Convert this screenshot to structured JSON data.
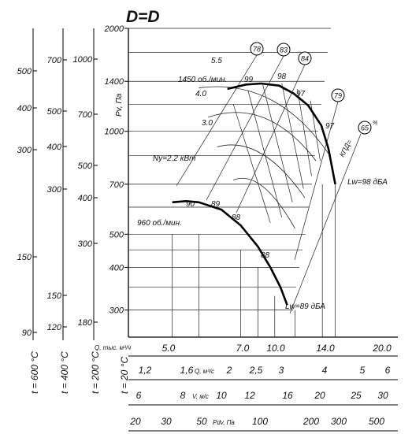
{
  "chart_data": {
    "type": "line",
    "title": "D=D",
    "ylabel": "Pv, Па",
    "y_log_ticks": [
      {
        "label": "2000",
        "value": 2000
      },
      {
        "label": "1400",
        "value": 1400
      },
      {
        "label": "1000",
        "value": 1000
      },
      {
        "label": "700",
        "value": 700
      },
      {
        "label": "500",
        "value": 500
      },
      {
        "label": "400",
        "value": 400
      },
      {
        "label": "300",
        "value": 300
      }
    ],
    "temp_axes": [
      {
        "label": "t = 600 °C",
        "ticks": [
          "500",
          "400",
          "300",
          "150",
          "90"
        ]
      },
      {
        "label": "t = 400 °C",
        "ticks": [
          "700",
          "500",
          "400",
          "300",
          "150",
          "120"
        ]
      },
      {
        "label": "t = 200 °C",
        "ticks": [
          "1000",
          "700",
          "500",
          "400",
          "300",
          "180"
        ]
      },
      {
        "label": "t = 20 °C",
        "ticks": []
      }
    ],
    "bottom_axes": [
      {
        "name": "Q, тыс. м³/ч",
        "ticks": [
          "5.0",
          "7.0",
          "10.0",
          "14.0",
          "20.0"
        ]
      },
      {
        "name": "Q, м³/с",
        "ticks": [
          "1,2",
          "1,6",
          "2",
          "2,5",
          "3",
          "4",
          "5",
          "6"
        ]
      },
      {
        "name": "V, м/с",
        "ticks": [
          "6",
          "8",
          "10",
          "12",
          "16",
          "20",
          "25",
          "30"
        ]
      },
      {
        "name": "Pdv, Па",
        "ticks": [
          "20",
          "30",
          "50",
          "100",
          "200",
          "300",
          "500"
        ]
      }
    ],
    "series": [
      {
        "name": "1450 об./мин.",
        "x": [
          7.3,
          8.3,
          9.2,
          10.4,
          11.5,
          12.7,
          13.9,
          14.6,
          15.3
        ],
        "y": [
          1330,
          1370,
          1380,
          1360,
          1290,
          1190,
          1040,
          890,
          700
        ]
      },
      {
        "name": "960 об./мин.",
        "x": [
          5.0,
          5.5,
          6.0,
          7.0,
          8.0,
          9.0,
          9.8,
          10.5,
          11.0
        ],
        "y": [
          620,
          625,
          620,
          590,
          530,
          460,
          400,
          350,
          310
        ]
      }
    ],
    "annotations": {
      "power": [
        "5.5",
        "4.0",
        "3.0",
        "Ny=2.2 кВт"
      ],
      "efficiency": [
        "99",
        "98",
        "97",
        "97",
        "90",
        "89",
        "88",
        "88"
      ],
      "efficiency_circles": [
        "78",
        "83",
        "84",
        "79",
        "65"
      ],
      "kpd_label": "КПД=",
      "kpd_unit": "%",
      "lw_high": "Lw=98 дБА",
      "lw_low": "Lw=89 дБА"
    }
  }
}
